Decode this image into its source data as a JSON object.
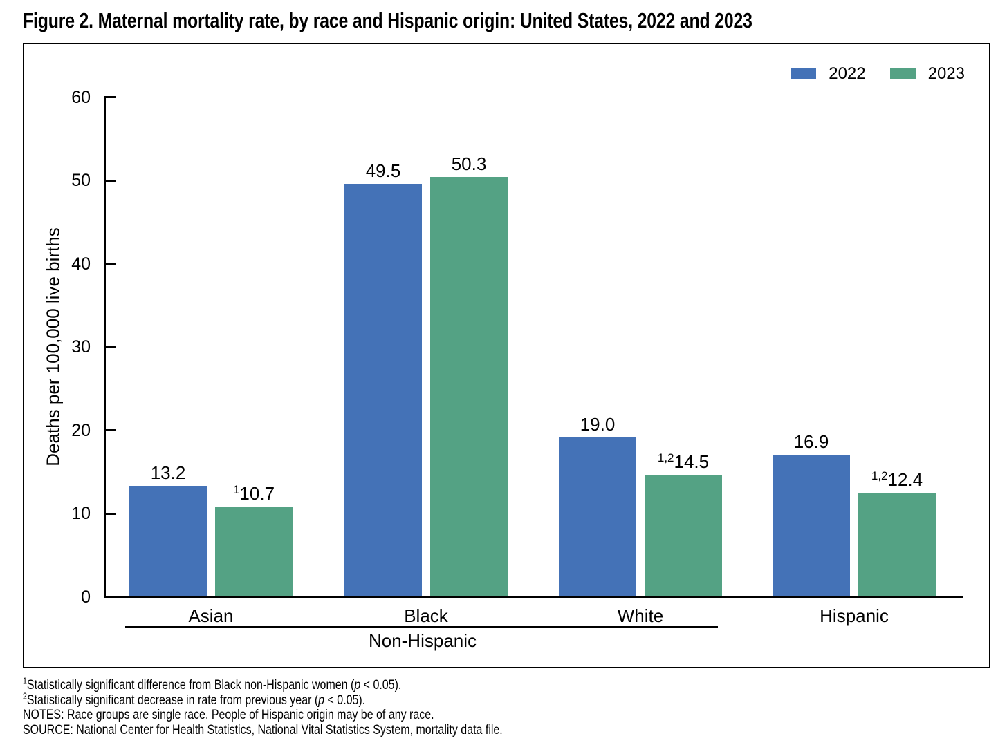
{
  "title": "Figure 2. Maternal mortality rate, by race and Hispanic origin: United States, 2022 and 2023",
  "colors": {
    "series_2022": "#4472B7",
    "series_2023": "#54A284",
    "axis": "#000000",
    "background": "#FFFFFF"
  },
  "legend": [
    {
      "label": "2022",
      "color": "#4472B7"
    },
    {
      "label": "2023",
      "color": "#54A284"
    }
  ],
  "chart_data": {
    "type": "bar",
    "title": "Figure 2. Maternal mortality rate, by race and Hispanic origin: United States, 2022 and 2023",
    "categories": [
      "Asian",
      "Black",
      "White",
      "Hispanic"
    ],
    "series": [
      {
        "name": "2022",
        "color": "#4472B7",
        "values": [
          13.2,
          49.5,
          19.0,
          16.9
        ],
        "value_labels": [
          "13.2",
          "49.5",
          "19.0",
          "16.9"
        ],
        "label_superscripts": [
          "",
          "",
          "",
          ""
        ]
      },
      {
        "name": "2023",
        "color": "#54A284",
        "values": [
          10.7,
          50.3,
          14.5,
          12.4
        ],
        "value_labels": [
          "10.7",
          "50.3",
          "14.5",
          "12.4"
        ],
        "label_superscripts": [
          "1",
          "",
          "1,2",
          "1,2"
        ]
      }
    ],
    "xlabel": "",
    "ylabel": "Deaths per 100,000 live births",
    "ylim": [
      0,
      60
    ],
    "ytick_step": 10,
    "ytick_labels": [
      "0",
      "10",
      "20",
      "30",
      "40",
      "50",
      "60"
    ],
    "grid": false,
    "legend_position": "top-right",
    "group_bracket": {
      "label": "Non-Hispanic",
      "applies_to": [
        "Asian",
        "Black",
        "White"
      ]
    }
  },
  "footnotes": [
    {
      "sup": "1",
      "before": "Statistically significant difference from Black non-Hispanic women (",
      "italic": "p",
      "after": " < 0.05)."
    },
    {
      "sup": "2",
      "before": "Statistically significant decrease in rate from previous year (",
      "italic": "p",
      "after": " < 0.05)."
    },
    {
      "sup": "",
      "before": "NOTES: Race groups are single race. People of Hispanic origin may be of any race.",
      "italic": "",
      "after": ""
    },
    {
      "sup": "",
      "before": "SOURCE: National Center for Health Statistics, National Vital Statistics System, mortality data file.",
      "italic": "",
      "after": ""
    }
  ]
}
